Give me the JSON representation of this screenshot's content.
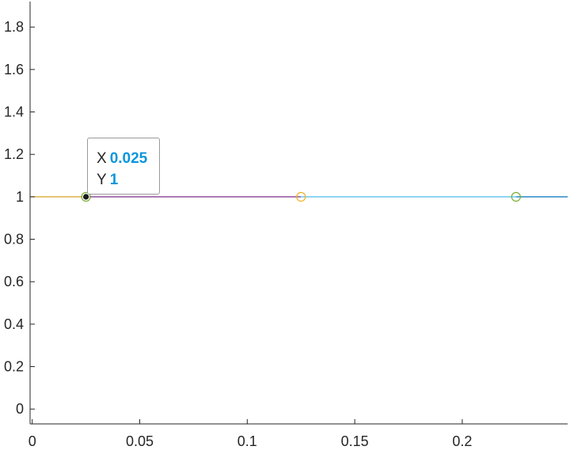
{
  "chart_data": {
    "type": "line",
    "title": "",
    "xlabel": "",
    "ylabel": "",
    "xlim": [
      -0.001,
      0.249
    ],
    "ylim": [
      -0.07,
      1.92
    ],
    "grid": false,
    "x_ticks": [
      0,
      0.05,
      0.1,
      0.15,
      0.2
    ],
    "x_tick_labels": [
      "0",
      "0.05",
      "0.1",
      "0.15",
      "0.2"
    ],
    "y_ticks": [
      0,
      0.2,
      0.4,
      0.6,
      0.8,
      1,
      1.2,
      1.4,
      1.6,
      1.8
    ],
    "y_tick_labels": [
      "0",
      "0.2",
      "0.4",
      "0.6",
      "0.8",
      "1",
      "1.2",
      "1.4",
      "1.6",
      "1.8"
    ],
    "series": [
      {
        "color": "#d9a321",
        "x": [
          -0.001,
          0.025
        ],
        "y": [
          1,
          1
        ]
      },
      {
        "color": "#7e2f8e",
        "x": [
          0.025,
          0.125
        ],
        "y": [
          1,
          1
        ]
      },
      {
        "color": "#4dbeee",
        "x": [
          0.125,
          0.225
        ],
        "y": [
          1,
          1
        ]
      },
      {
        "color": "#0072bd",
        "x": [
          0.225,
          0.249
        ],
        "y": [
          1,
          1
        ]
      }
    ],
    "markers": [
      {
        "x": 0.025,
        "y": 1,
        "color": "#77ac30",
        "selected": true
      },
      {
        "x": 0.125,
        "y": 1,
        "color": "#edb120",
        "selected": false
      },
      {
        "x": 0.225,
        "y": 1,
        "color": "#77ac30",
        "selected": false
      }
    ]
  },
  "datatip": {
    "x_label": "X",
    "x_value": "0.025",
    "y_label": "Y",
    "y_value": "1"
  }
}
